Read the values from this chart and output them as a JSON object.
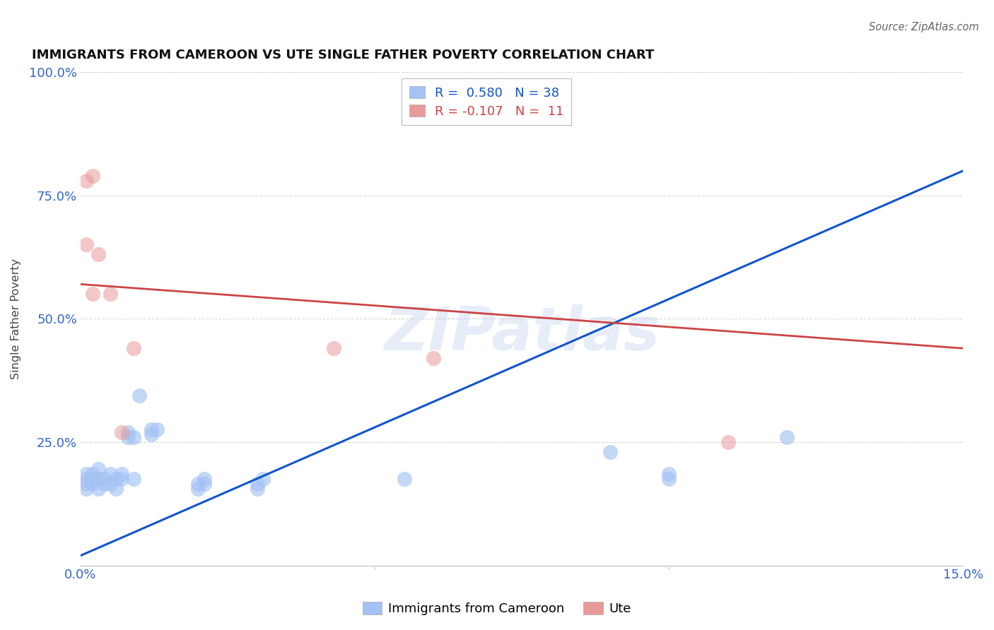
{
  "title": "IMMIGRANTS FROM CAMEROON VS UTE SINGLE FATHER POVERTY CORRELATION CHART",
  "source": "Source: ZipAtlas.com",
  "ylabel": "Single Father Poverty",
  "xlim": [
    0.0,
    0.15
  ],
  "ylim": [
    0.0,
    1.0
  ],
  "blue_R": 0.58,
  "blue_N": 38,
  "pink_R": -0.107,
  "pink_N": 11,
  "blue_color": "#a4c2f4",
  "pink_color": "#ea9999",
  "blue_line_color": "#1155cc",
  "pink_line_color": "#cc4444",
  "blue_line": [
    [
      0.0,
      0.02
    ],
    [
      0.15,
      0.8
    ]
  ],
  "pink_line": [
    [
      0.0,
      0.57
    ],
    [
      0.15,
      0.44
    ]
  ],
  "blue_scatter": [
    [
      0.001,
      0.185
    ],
    [
      0.001,
      0.175
    ],
    [
      0.001,
      0.165
    ],
    [
      0.001,
      0.155
    ],
    [
      0.002,
      0.185
    ],
    [
      0.002,
      0.175
    ],
    [
      0.002,
      0.165
    ],
    [
      0.003,
      0.195
    ],
    [
      0.003,
      0.175
    ],
    [
      0.003,
      0.155
    ],
    [
      0.004,
      0.175
    ],
    [
      0.004,
      0.165
    ],
    [
      0.005,
      0.185
    ],
    [
      0.005,
      0.165
    ],
    [
      0.006,
      0.175
    ],
    [
      0.006,
      0.155
    ],
    [
      0.007,
      0.185
    ],
    [
      0.007,
      0.175
    ],
    [
      0.008,
      0.26
    ],
    [
      0.008,
      0.27
    ],
    [
      0.009,
      0.26
    ],
    [
      0.009,
      0.175
    ],
    [
      0.01,
      0.345
    ],
    [
      0.012,
      0.275
    ],
    [
      0.012,
      0.265
    ],
    [
      0.013,
      0.275
    ],
    [
      0.02,
      0.165
    ],
    [
      0.02,
      0.155
    ],
    [
      0.021,
      0.175
    ],
    [
      0.021,
      0.165
    ],
    [
      0.03,
      0.165
    ],
    [
      0.03,
      0.155
    ],
    [
      0.031,
      0.175
    ],
    [
      0.055,
      0.175
    ],
    [
      0.09,
      0.23
    ],
    [
      0.1,
      0.185
    ],
    [
      0.1,
      0.175
    ],
    [
      0.12,
      0.26
    ]
  ],
  "pink_scatter": [
    [
      0.001,
      0.78
    ],
    [
      0.001,
      0.65
    ],
    [
      0.002,
      0.55
    ],
    [
      0.003,
      0.63
    ],
    [
      0.005,
      0.55
    ],
    [
      0.007,
      0.27
    ],
    [
      0.009,
      0.44
    ],
    [
      0.043,
      0.44
    ],
    [
      0.06,
      0.42
    ],
    [
      0.11,
      0.25
    ],
    [
      0.002,
      0.79
    ]
  ],
  "watermark": "ZIPatlas",
  "background_color": "#ffffff",
  "grid_color": "#cccccc"
}
